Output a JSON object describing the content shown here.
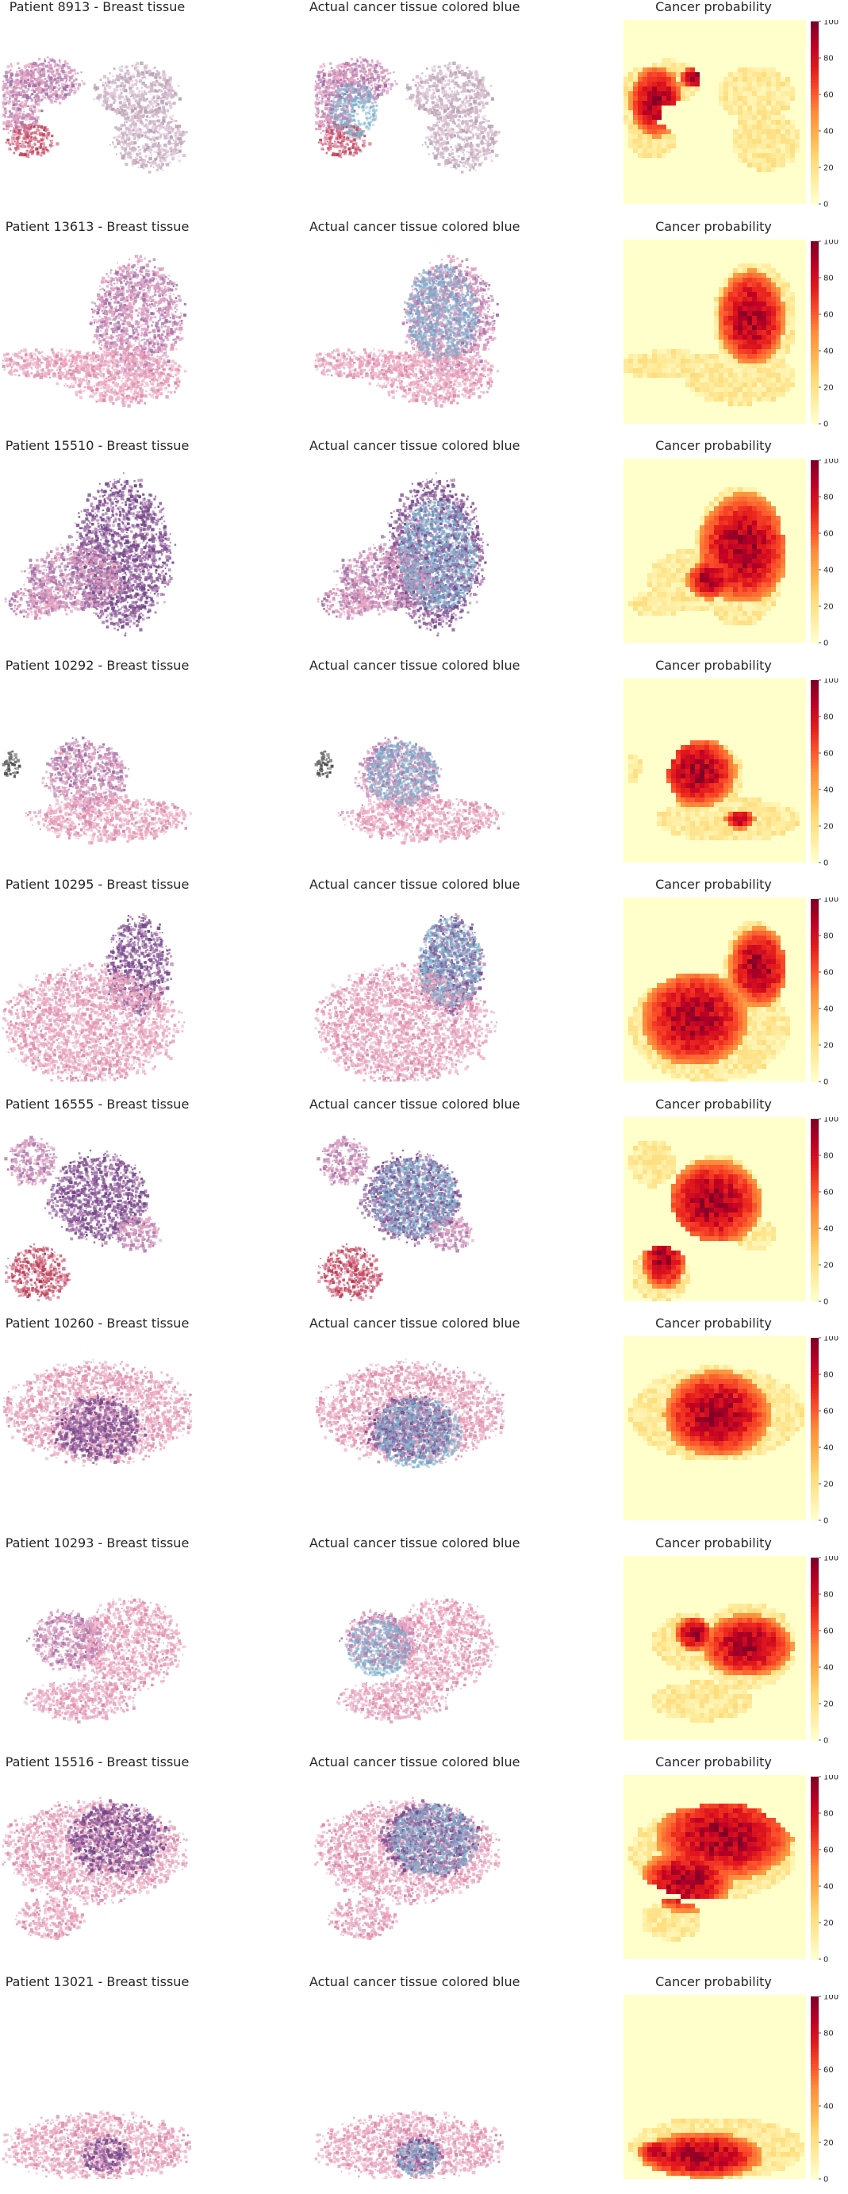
{
  "figure": {
    "rows": [
      {
        "patient_title": "Patient 8913 - Breast tissue",
        "overlay_title": "Actual cancer tissue colored blue",
        "heatmap_title": "Cancer probability"
      },
      {
        "patient_title": "Patient 13613 - Breast tissue",
        "overlay_title": "Actual cancer tissue colored blue",
        "heatmap_title": "Cancer probability"
      },
      {
        "patient_title": "Patient 15510 - Breast tissue",
        "overlay_title": "Actual cancer tissue colored blue",
        "heatmap_title": "Cancer probability"
      },
      {
        "patient_title": "Patient 10292 - Breast tissue",
        "overlay_title": "Actual cancer tissue colored blue",
        "heatmap_title": "Cancer probability"
      },
      {
        "patient_title": "Patient 10295 - Breast tissue",
        "overlay_title": "Actual cancer tissue colored blue",
        "heatmap_title": "Cancer probability"
      },
      {
        "patient_title": "Patient 16555 - Breast tissue",
        "overlay_title": "Actual cancer tissue colored blue",
        "heatmap_title": "Cancer probability"
      },
      {
        "patient_title": "Patient 10260 - Breast tissue",
        "overlay_title": "Actual cancer tissue colored blue",
        "heatmap_title": "Cancer probability"
      },
      {
        "patient_title": "Patient 10293 - Breast tissue",
        "overlay_title": "Actual cancer tissue colored blue",
        "heatmap_title": "Cancer probability"
      },
      {
        "patient_title": "Patient 15516 - Breast tissue",
        "overlay_title": "Actual cancer tissue colored blue",
        "heatmap_title": "Cancer probability"
      },
      {
        "patient_title": "Patient 13021 - Breast tissue",
        "overlay_title": "Actual cancer tissue colored blue",
        "heatmap_title": "Cancer probability"
      }
    ],
    "colorbar": {
      "ticks": [
        "0",
        "20",
        "40",
        "60",
        "80",
        "100"
      ],
      "range": [
        0,
        100
      ],
      "colormap": [
        "#ffffcc",
        "#ffeda0",
        "#fed976",
        "#feb24c",
        "#fd8d3c",
        "#fc4e2a",
        "#e31a1c",
        "#bd0026",
        "#800026"
      ]
    },
    "colors": {
      "tissue_pink": "#e8a2be",
      "tissue_purple": "#8a5a9a",
      "cancer_overlay_blue": "#7aaecb",
      "title_text": "#262626"
    }
  }
}
